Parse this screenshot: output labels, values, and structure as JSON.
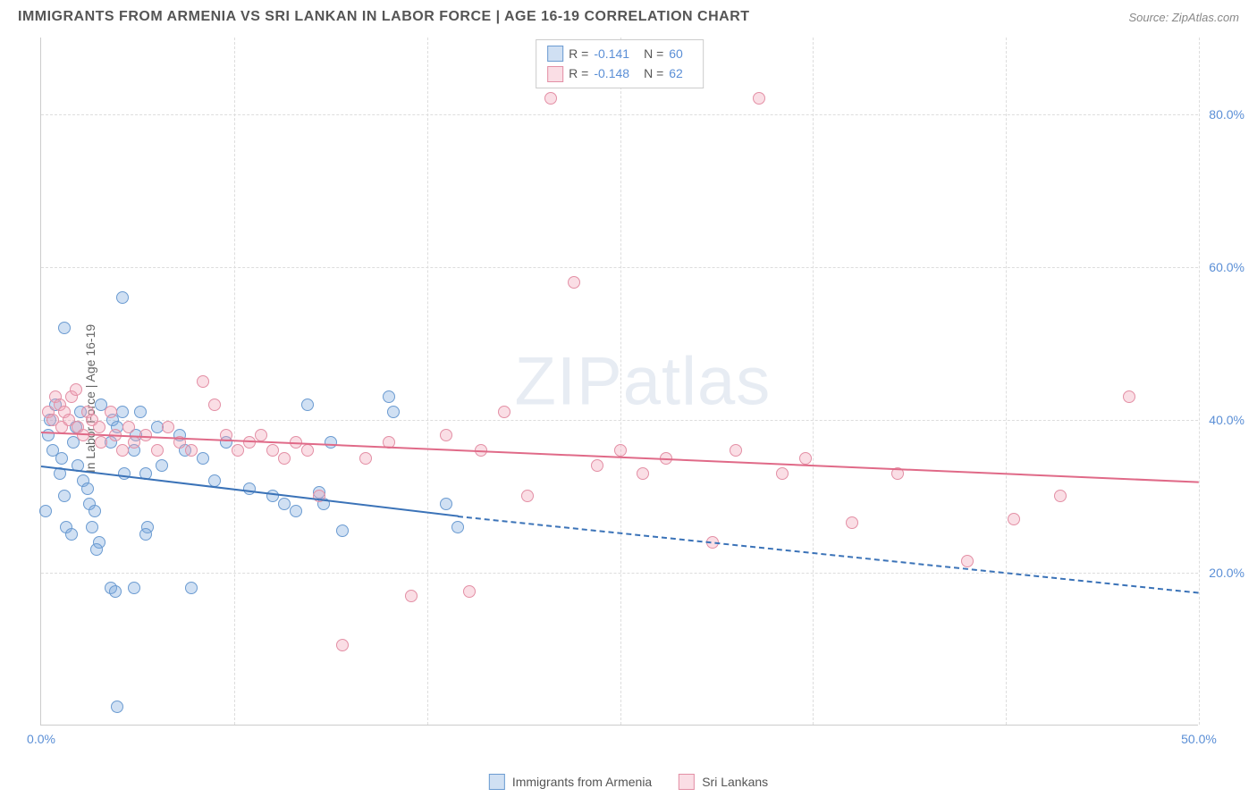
{
  "title": "IMMIGRANTS FROM ARMENIA VS SRI LANKAN IN LABOR FORCE | AGE 16-19 CORRELATION CHART",
  "source": "Source: ZipAtlas.com",
  "watermark_a": "ZIP",
  "watermark_b": "atlas",
  "y_axis_title": "In Labor Force | Age 16-19",
  "chart": {
    "type": "scatter-correlation",
    "xlim": [
      0,
      50
    ],
    "ylim": [
      0,
      90
    ],
    "xtick_labels": [
      "0.0%",
      "50.0%"
    ],
    "xtick_positions": [
      0,
      50
    ],
    "ytick_labels": [
      "20.0%",
      "40.0%",
      "60.0%",
      "80.0%"
    ],
    "ytick_positions": [
      20,
      40,
      60,
      80
    ],
    "xgrid_positions": [
      0,
      8.33,
      16.67,
      25,
      33.33,
      41.67,
      50
    ],
    "background_color": "#ffffff",
    "grid_color": "#dddddd",
    "axis_color": "#cccccc",
    "tick_label_color": "#5b8fd6",
    "point_radius": 7
  },
  "series": [
    {
      "id": "armenia",
      "label": "Immigrants from Armenia",
      "fill": "rgba(120,165,220,0.35)",
      "stroke": "#6b9bd1",
      "line_color": "#3b73b8",
      "R": "-0.141",
      "N": "60",
      "trend": {
        "x1": 0,
        "y1": 34,
        "x2_solid": 18,
        "y2_solid": 27.5,
        "x2": 50,
        "y2": 17.5
      },
      "points": [
        [
          0.3,
          38
        ],
        [
          0.4,
          40
        ],
        [
          0.6,
          42
        ],
        [
          0.5,
          36
        ],
        [
          0.8,
          33
        ],
        [
          0.9,
          35
        ],
        [
          1.0,
          30
        ],
        [
          0.2,
          28
        ],
        [
          1.1,
          26
        ],
        [
          1.3,
          25
        ],
        [
          1.0,
          52
        ],
        [
          1.4,
          37
        ],
        [
          1.5,
          39
        ],
        [
          1.7,
          41
        ],
        [
          1.6,
          34
        ],
        [
          1.8,
          32
        ],
        [
          2.0,
          31
        ],
        [
          2.1,
          29
        ],
        [
          2.3,
          28
        ],
        [
          2.2,
          26
        ],
        [
          2.5,
          24
        ],
        [
          2.4,
          23
        ],
        [
          2.6,
          42
        ],
        [
          3.0,
          37
        ],
        [
          3.1,
          40
        ],
        [
          3.3,
          39
        ],
        [
          3.5,
          41
        ],
        [
          3.6,
          33
        ],
        [
          3.0,
          18
        ],
        [
          3.2,
          17.5
        ],
        [
          3.5,
          56
        ],
        [
          4.0,
          36
        ],
        [
          4.1,
          38
        ],
        [
          4.3,
          41
        ],
        [
          4.5,
          33
        ],
        [
          4.6,
          26
        ],
        [
          4.0,
          18
        ],
        [
          4.5,
          25
        ],
        [
          5.0,
          39
        ],
        [
          5.2,
          34
        ],
        [
          6.0,
          38
        ],
        [
          6.2,
          36
        ],
        [
          6.5,
          18
        ],
        [
          7.0,
          35
        ],
        [
          7.5,
          32
        ],
        [
          8.0,
          37
        ],
        [
          9.0,
          31
        ],
        [
          10.0,
          30
        ],
        [
          10.5,
          29
        ],
        [
          11.0,
          28
        ],
        [
          11.5,
          42
        ],
        [
          12.0,
          30.5
        ],
        [
          12.2,
          29
        ],
        [
          12.5,
          37
        ],
        [
          13.0,
          25.5
        ],
        [
          15.0,
          43
        ],
        [
          15.2,
          41
        ],
        [
          17.5,
          29
        ],
        [
          18.0,
          26
        ],
        [
          3.3,
          2.5
        ]
      ]
    },
    {
      "id": "srilanka",
      "label": "Sri Lankans",
      "fill": "rgba(240,160,180,0.35)",
      "stroke": "#e38fa5",
      "line_color": "#e06a88",
      "R": "-0.148",
      "N": "62",
      "trend": {
        "x1": 0,
        "y1": 38.5,
        "x2_solid": 50,
        "y2_solid": 32,
        "x2": 50,
        "y2": 32
      },
      "points": [
        [
          0.3,
          41
        ],
        [
          0.5,
          40
        ],
        [
          0.6,
          43
        ],
        [
          0.8,
          42
        ],
        [
          0.9,
          39
        ],
        [
          1.0,
          41
        ],
        [
          1.2,
          40
        ],
        [
          1.3,
          43
        ],
        [
          1.5,
          44
        ],
        [
          1.6,
          39
        ],
        [
          1.8,
          38
        ],
        [
          2.0,
          41
        ],
        [
          2.2,
          40
        ],
        [
          2.5,
          39
        ],
        [
          2.6,
          37
        ],
        [
          3.0,
          41
        ],
        [
          3.2,
          38
        ],
        [
          3.5,
          36
        ],
        [
          3.8,
          39
        ],
        [
          4.0,
          37
        ],
        [
          4.5,
          38
        ],
        [
          5.0,
          36
        ],
        [
          5.5,
          39
        ],
        [
          6.0,
          37
        ],
        [
          6.5,
          36
        ],
        [
          7.0,
          45
        ],
        [
          7.5,
          42
        ],
        [
          8.0,
          38
        ],
        [
          8.5,
          36
        ],
        [
          9.0,
          37
        ],
        [
          9.5,
          38
        ],
        [
          10.0,
          36
        ],
        [
          10.5,
          35
        ],
        [
          11.0,
          37
        ],
        [
          11.5,
          36
        ],
        [
          12.0,
          30
        ],
        [
          13.0,
          10.5
        ],
        [
          14.0,
          35
        ],
        [
          15.0,
          37
        ],
        [
          16.0,
          17
        ],
        [
          17.5,
          38
        ],
        [
          18.5,
          17.5
        ],
        [
          19.0,
          36
        ],
        [
          20.0,
          41
        ],
        [
          21.0,
          30
        ],
        [
          22.0,
          82
        ],
        [
          23.0,
          58
        ],
        [
          24.0,
          34
        ],
        [
          25.0,
          36
        ],
        [
          26.0,
          33
        ],
        [
          27.0,
          35
        ],
        [
          29.0,
          24
        ],
        [
          30.0,
          36
        ],
        [
          31.0,
          82
        ],
        [
          32.0,
          33
        ],
        [
          33.0,
          35
        ],
        [
          35.0,
          26.5
        ],
        [
          37.0,
          33
        ],
        [
          40.0,
          21.5
        ],
        [
          42.0,
          27
        ],
        [
          44.0,
          30
        ],
        [
          47.0,
          43
        ]
      ]
    }
  ],
  "legend_labels": {
    "R": "R =",
    "N": "N ="
  },
  "bottom_legend": {
    "series1": "Immigrants from Armenia",
    "series2": "Sri Lankans"
  }
}
